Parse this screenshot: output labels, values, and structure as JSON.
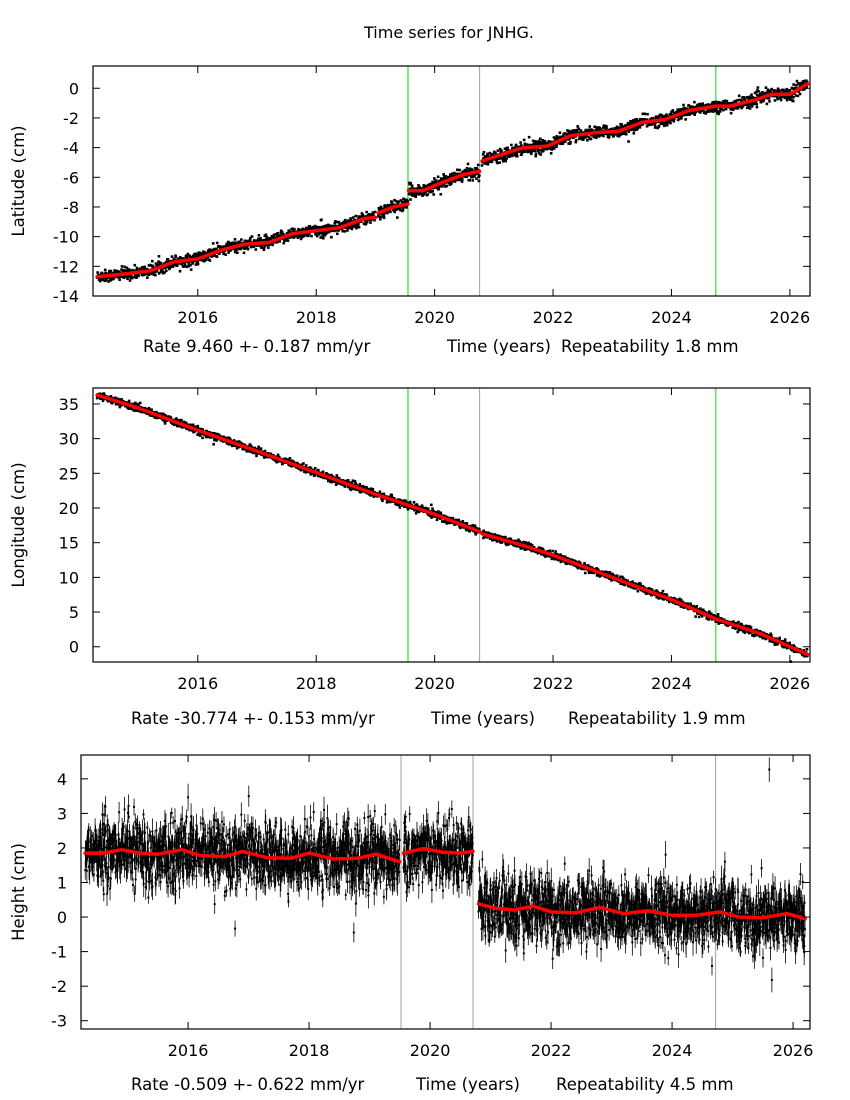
{
  "title": "Time series for JNHG.",
  "colors": {
    "data": "#000000",
    "model": "#ff0000",
    "event_line": "#00e000",
    "event_line_muted": "#a0a0a0"
  },
  "chart_data": [
    {
      "type": "scatter",
      "ylabel": "Latitude (cm)",
      "xlabel": "Time (years)",
      "rate_text": "Rate 9.460 +- 0.187 mm/yr",
      "repeatability_text": "Repeatability 1.8 mm",
      "xlim": [
        2014.23,
        2026.34
      ],
      "ylim": [
        -14,
        1.5
      ],
      "xticks": [
        2016,
        2018,
        2020,
        2022,
        2024,
        2026
      ],
      "yticks": [
        0,
        -2,
        -4,
        -6,
        -8,
        -10,
        -12,
        -14
      ],
      "event_lines": [
        2019.55,
        2020.76,
        2024.75
      ],
      "noise_cm": 0.2,
      "model_segments": [
        [
          [
            2014.3,
            -12.7
          ],
          [
            2014.8,
            -12.5
          ],
          [
            2015.2,
            -12.3
          ],
          [
            2015.6,
            -11.7
          ],
          [
            2016.0,
            -11.5
          ],
          [
            2016.4,
            -10.9
          ],
          [
            2016.8,
            -10.5
          ],
          [
            2017.2,
            -10.4
          ],
          [
            2017.6,
            -9.8
          ],
          [
            2018.0,
            -9.6
          ],
          [
            2018.4,
            -9.4
          ],
          [
            2018.8,
            -8.8
          ],
          [
            2019.0,
            -8.7
          ]
        ],
        [
          [
            2019.05,
            -8.4
          ],
          [
            2019.3,
            -8.0
          ],
          [
            2019.55,
            -7.8
          ]
        ],
        [
          [
            2019.56,
            -6.9
          ],
          [
            2019.8,
            -6.9
          ],
          [
            2020.1,
            -6.4
          ],
          [
            2020.5,
            -5.8
          ],
          [
            2020.76,
            -5.6
          ]
        ],
        [
          [
            2020.8,
            -4.9
          ],
          [
            2021.1,
            -4.5
          ],
          [
            2021.5,
            -4.0
          ],
          [
            2021.9,
            -3.9
          ],
          [
            2022.3,
            -3.2
          ],
          [
            2022.7,
            -3.0
          ],
          [
            2023.1,
            -2.9
          ],
          [
            2023.5,
            -2.3
          ],
          [
            2023.9,
            -2.1
          ],
          [
            2024.3,
            -1.5
          ],
          [
            2024.75,
            -1.2
          ],
          [
            2025.0,
            -1.2
          ],
          [
            2025.4,
            -0.8
          ],
          [
            2025.7,
            -0.4
          ],
          [
            2026.0,
            -0.4
          ],
          [
            2026.3,
            0.3
          ]
        ]
      ]
    },
    {
      "type": "scatter",
      "ylabel": "Longitude (cm)",
      "xlabel": "Time (years)",
      "rate_text": "Rate -30.774 +- 0.153 mm/yr",
      "repeatability_text": "Repeatability 1.9 mm",
      "xlim": [
        2014.23,
        2026.34
      ],
      "ylim": [
        -2.2,
        37.3
      ],
      "xticks": [
        2016,
        2018,
        2020,
        2022,
        2024,
        2026
      ],
      "yticks": [
        0,
        5,
        10,
        15,
        20,
        25,
        30,
        35
      ],
      "event_lines": [
        2019.55,
        2020.76,
        2024.75
      ],
      "noise_cm": 0.25,
      "model_segments": [
        [
          [
            2014.3,
            36.3
          ],
          [
            2015.0,
            34.4
          ],
          [
            2016.0,
            31.2
          ],
          [
            2017.0,
            28.2
          ],
          [
            2018.0,
            25.1
          ],
          [
            2019.0,
            22.0
          ],
          [
            2019.55,
            20.4
          ],
          [
            2020.0,
            19.1
          ],
          [
            2020.76,
            16.6
          ]
        ],
        [
          [
            2020.8,
            16.3
          ],
          [
            2021.5,
            14.6
          ],
          [
            2022.0,
            13.2
          ],
          [
            2023.0,
            10.0
          ],
          [
            2024.0,
            6.8
          ],
          [
            2024.75,
            4.0
          ],
          [
            2025.5,
            1.9
          ],
          [
            2026.3,
            -1.1
          ]
        ]
      ]
    },
    {
      "type": "scatter",
      "ylabel": "Height (cm)",
      "xlabel": "Time (years)",
      "rate_text": "Rate -0.509 +- 0.622 mm/yr",
      "repeatability_text": "Repeatability 4.5 mm",
      "xlim": [
        2014.23,
        2026.28
      ],
      "ylim": [
        -3.24,
        4.69
      ],
      "xticks": [
        2016,
        2018,
        2020,
        2022,
        2024,
        2026
      ],
      "yticks": [
        4,
        3,
        2,
        1,
        0,
        -1,
        -2,
        -3
      ],
      "event_lines": [
        2019.52,
        2020.71,
        2024.72
      ],
      "noise_cm": 0.45,
      "model_segments": [
        [
          [
            2014.3,
            1.85
          ],
          [
            2014.6,
            1.85
          ],
          [
            2014.9,
            1.95
          ],
          [
            2015.2,
            1.85
          ],
          [
            2015.5,
            1.82
          ],
          [
            2015.9,
            1.95
          ],
          [
            2016.2,
            1.78
          ],
          [
            2016.6,
            1.75
          ],
          [
            2016.9,
            1.9
          ],
          [
            2017.3,
            1.72
          ],
          [
            2017.7,
            1.7
          ],
          [
            2018.0,
            1.85
          ],
          [
            2018.4,
            1.68
          ],
          [
            2018.8,
            1.7
          ],
          [
            2019.1,
            1.82
          ],
          [
            2019.5,
            1.6
          ]
        ],
        [
          [
            2019.56,
            1.85
          ],
          [
            2019.9,
            1.98
          ],
          [
            2020.2,
            1.88
          ],
          [
            2020.5,
            1.85
          ],
          [
            2020.71,
            1.9
          ]
        ],
        [
          [
            2020.8,
            0.38
          ],
          [
            2021.1,
            0.25
          ],
          [
            2021.4,
            0.2
          ],
          [
            2021.7,
            0.32
          ],
          [
            2022.0,
            0.15
          ],
          [
            2022.4,
            0.12
          ],
          [
            2022.8,
            0.28
          ],
          [
            2023.2,
            0.1
          ],
          [
            2023.6,
            0.18
          ],
          [
            2024.0,
            0.05
          ],
          [
            2024.4,
            0.05
          ],
          [
            2024.8,
            0.15
          ],
          [
            2025.1,
            0.0
          ],
          [
            2025.5,
            -0.02
          ],
          [
            2025.9,
            0.1
          ],
          [
            2026.2,
            -0.05
          ]
        ]
      ]
    }
  ]
}
